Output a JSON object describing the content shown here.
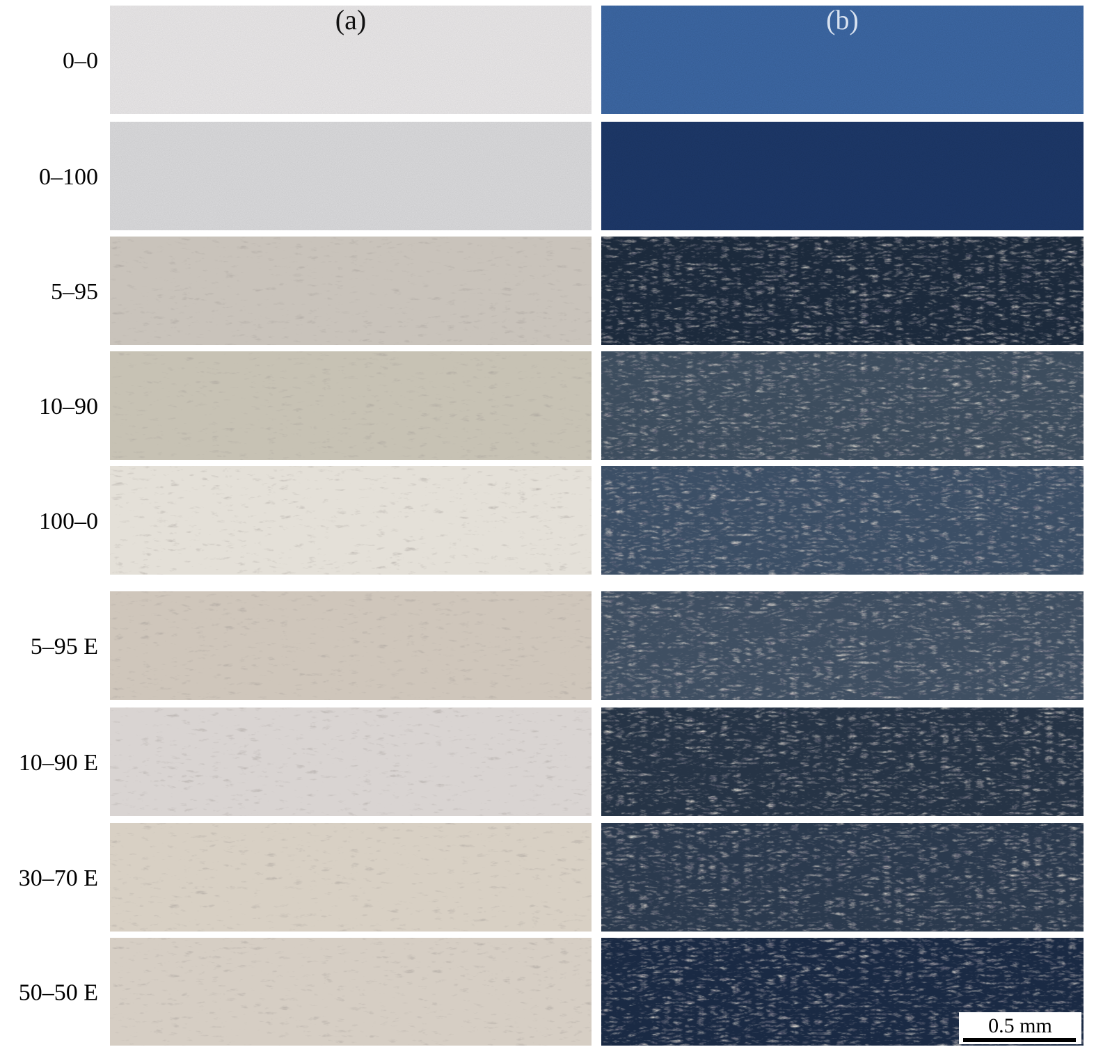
{
  "columns": [
    "(a)",
    "(b)"
  ],
  "rows": [
    "0–0",
    "0–100",
    "5–95",
    "10–90",
    "100–0",
    "5–95 E",
    "10–90 E",
    "30–70 E",
    "50–50 E"
  ],
  "scale_bar": "0.5 mm"
}
